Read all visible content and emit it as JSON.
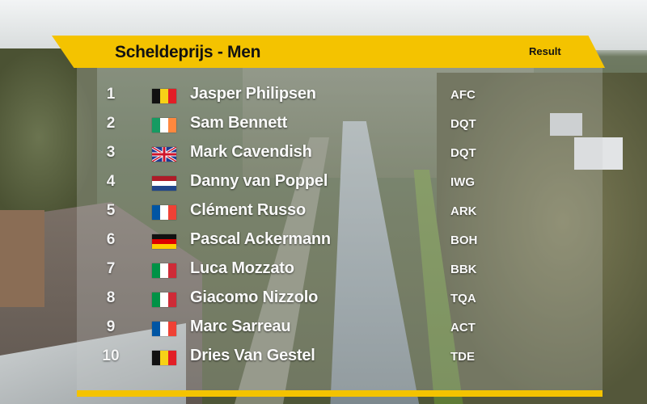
{
  "overlay": {
    "title": "Scheldeprijs - Men",
    "status": "Result",
    "colors": {
      "accent": "#f4c300",
      "text_on_accent": "#121212"
    }
  },
  "results": [
    {
      "position": "1",
      "name": "Jasper Philipsen",
      "team": "AFC",
      "flag": "belgium-flag-icon"
    },
    {
      "position": "2",
      "name": "Sam Bennett",
      "team": "DQT",
      "flag": "ireland-flag-icon"
    },
    {
      "position": "3",
      "name": "Mark Cavendish",
      "team": "DQT",
      "flag": "united-kingdom-flag-icon"
    },
    {
      "position": "4",
      "name": "Danny van Poppel",
      "team": "IWG",
      "flag": "netherlands-flag-icon"
    },
    {
      "position": "5",
      "name": "Clément Russo",
      "team": "ARK",
      "flag": "france-flag-icon"
    },
    {
      "position": "6",
      "name": "Pascal Ackermann",
      "team": "BOH",
      "flag": "germany-flag-icon"
    },
    {
      "position": "7",
      "name": "Luca Mozzato",
      "team": "BBK",
      "flag": "italy-flag-icon"
    },
    {
      "position": "8",
      "name": "Giacomo Nizzolo",
      "team": "TQA",
      "flag": "italy-flag-icon"
    },
    {
      "position": "9",
      "name": "Marc Sarreau",
      "team": "ACT",
      "flag": "france-flag-icon"
    },
    {
      "position": "10",
      "name": "Dries Van Gestel",
      "team": "TDE",
      "flag": "belgium-flag-icon"
    }
  ]
}
